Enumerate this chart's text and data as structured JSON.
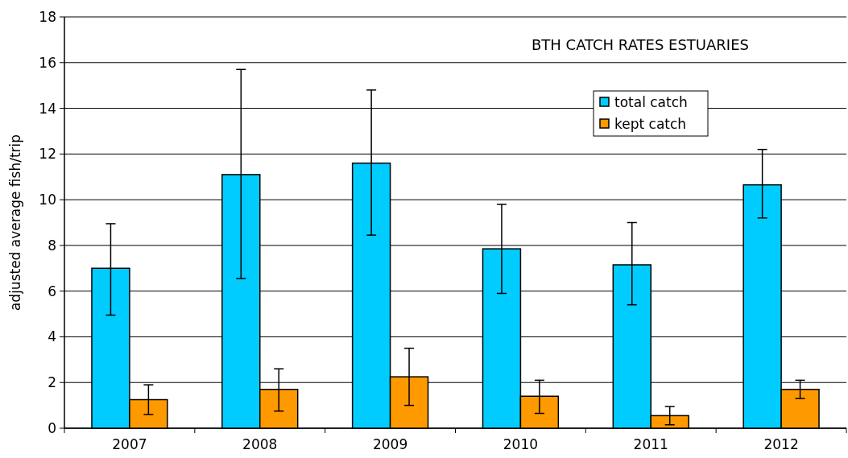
{
  "chart_data": {
    "type": "bar",
    "title": "BTH CATCH RATES ESTUARIES",
    "ylabel": "adjusted average fish/trip",
    "categories": [
      "2007",
      "2008",
      "2009",
      "2010",
      "2011",
      "2012"
    ],
    "series": [
      {
        "name": "total catch",
        "color": "#00ccff",
        "values": [
          7.0,
          11.1,
          11.6,
          7.85,
          7.15,
          10.65
        ],
        "errors": [
          [
            4.95,
            8.95
          ],
          [
            6.55,
            15.7
          ],
          [
            8.45,
            14.8
          ],
          [
            5.9,
            9.8
          ],
          [
            5.4,
            9.0
          ],
          [
            9.2,
            12.2
          ]
        ]
      },
      {
        "name": "kept catch",
        "color": "#ff9900",
        "values": [
          1.25,
          1.7,
          2.25,
          1.4,
          0.55,
          1.7
        ],
        "errors": [
          [
            0.6,
            1.9
          ],
          [
            0.75,
            2.6
          ],
          [
            1.0,
            3.5
          ],
          [
            0.65,
            2.1
          ],
          [
            0.15,
            0.95
          ],
          [
            1.3,
            2.1
          ]
        ]
      }
    ],
    "ylim": [
      0,
      18
    ],
    "yticks": [
      0,
      2,
      4,
      6,
      8,
      10,
      12,
      14,
      16,
      18
    ],
    "grid": "y",
    "legend": "top right"
  }
}
